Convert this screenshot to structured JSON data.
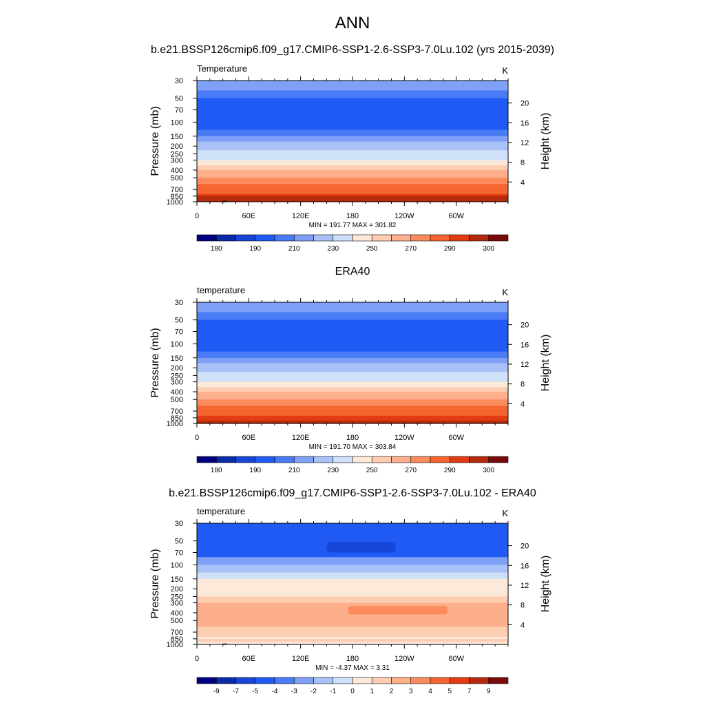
{
  "figure": {
    "title": "ANN",
    "panel_titles": [
      "b.e21.BSSP126cmip6.f09_g17.CMIP6-SSP1-2.6-SSP3-7.0Lu.102 (yrs 2015-2039)",
      "ERA40",
      "b.e21.BSSP126cmip6.f09_g17.CMIP6-SSP1-2.6-SSP3-7.0Lu.102 - ERA40"
    ]
  },
  "colors": {
    "abs_levels": [
      "#000080",
      "#0a2aa8",
      "#1745d6",
      "#1f5af5",
      "#4a7bf6",
      "#7ea0f6",
      "#a9c1f7",
      "#cfe0f9",
      "#fde9da",
      "#fdcdb1",
      "#fdae8a",
      "#fb8b5d",
      "#f5652f",
      "#e23a12",
      "#b52a0c",
      "#780a0a"
    ],
    "diff_levels": [
      "#000080",
      "#0a2aa8",
      "#1745d6",
      "#1f5af5",
      "#4a7bf6",
      "#7ea0f6",
      "#a9c1f7",
      "#cfe0f9",
      "#fde9da",
      "#fdcdb1",
      "#fdae8a",
      "#fb8b5d",
      "#f5652f",
      "#e23a12",
      "#b52a0c",
      "#780a0a"
    ]
  },
  "chart_data": [
    {
      "type": "heatmap",
      "name": "model",
      "subtitle_left": "Temperature",
      "units": "K",
      "ylabel": "Pressure (mb)",
      "ylabel_right": "Height (km)",
      "x_ticks": [
        "0",
        "60E",
        "120E",
        "180",
        "120W",
        "60W"
      ],
      "y_ticks": [
        "30",
        "50",
        "70",
        "100",
        "150",
        "200",
        "250",
        "300",
        "400",
        "500",
        "700",
        "850",
        "1000"
      ],
      "y_tick_values": [
        30,
        50,
        70,
        100,
        150,
        200,
        250,
        300,
        400,
        500,
        700,
        850,
        1000
      ],
      "height_ticks": [
        "4",
        "8",
        "12",
        "16",
        "20"
      ],
      "height_tick_values": [
        4,
        8,
        12,
        16,
        20
      ],
      "ylim": [
        1000,
        30
      ],
      "xlim": [
        0,
        360
      ],
      "stats": "MIN = 191.77  MAX = 301.82",
      "colorbar_labels": [
        "180",
        "190",
        "210",
        "230",
        "250",
        "270",
        "290",
        "300"
      ],
      "profile_pressure": [
        30,
        40,
        50,
        60,
        70,
        85,
        100,
        125,
        150,
        175,
        200,
        225,
        250,
        300,
        350,
        400,
        500,
        600,
        700,
        800,
        850,
        925,
        1000
      ],
      "profile_level": [
        5,
        4,
        3,
        3,
        3,
        3,
        3,
        4,
        5,
        6,
        6,
        7,
        7,
        8,
        9,
        10,
        11,
        12,
        12,
        13,
        14,
        14,
        15
      ],
      "topography_lon": [
        [
          10,
          30
        ],
        [
          30,
          35
        ],
        [
          35,
          45
        ],
        [
          102,
          105
        ],
        [
          114,
          116
        ],
        [
          235,
          255
        ]
      ],
      "topography_top_mb": [
        990,
        975,
        990,
        990,
        990,
        990
      ]
    },
    {
      "type": "heatmap",
      "name": "obs",
      "subtitle_left": "temperature",
      "units": "K",
      "ylabel": "Pressure (mb)",
      "ylabel_right": "Height (km)",
      "x_ticks": [
        "0",
        "60E",
        "120E",
        "180",
        "120W",
        "60W"
      ],
      "y_ticks": [
        "30",
        "50",
        "70",
        "100",
        "150",
        "200",
        "250",
        "300",
        "400",
        "500",
        "700",
        "850",
        "1000"
      ],
      "y_tick_values": [
        30,
        50,
        70,
        100,
        150,
        200,
        250,
        300,
        400,
        500,
        700,
        850,
        1000
      ],
      "height_ticks": [
        "4",
        "8",
        "12",
        "16",
        "20"
      ],
      "height_tick_values": [
        4,
        8,
        12,
        16,
        20
      ],
      "ylim": [
        1000,
        30
      ],
      "xlim": [
        0,
        360
      ],
      "stats": "MIN = 191.70  MAX = 303.84",
      "colorbar_labels": [
        "180",
        "190",
        "210",
        "230",
        "250",
        "270",
        "290",
        "300"
      ],
      "profile_pressure": [
        30,
        40,
        50,
        60,
        70,
        85,
        100,
        125,
        150,
        175,
        200,
        225,
        250,
        300,
        350,
        400,
        500,
        600,
        700,
        800,
        850,
        925,
        1000
      ],
      "profile_level": [
        5,
        4,
        3,
        3,
        3,
        3,
        3,
        4,
        5,
        6,
        6,
        7,
        7,
        8,
        9,
        10,
        11,
        12,
        12,
        13,
        13,
        14,
        15
      ],
      "topography_lon": [],
      "topography_top_mb": []
    },
    {
      "type": "heatmap",
      "name": "diff",
      "subtitle_left": "temperature",
      "units": "K",
      "ylabel": "Pressure (mb)",
      "ylabel_right": "Height (km)",
      "x_ticks": [
        "0",
        "60E",
        "120E",
        "180",
        "120W",
        "60W"
      ],
      "y_ticks": [
        "30",
        "50",
        "70",
        "100",
        "150",
        "200",
        "250",
        "300",
        "400",
        "500",
        "700",
        "850",
        "1000"
      ],
      "y_tick_values": [
        30,
        50,
        70,
        100,
        150,
        200,
        250,
        300,
        400,
        500,
        700,
        850,
        1000
      ],
      "height_ticks": [
        "4",
        "8",
        "12",
        "16",
        "20"
      ],
      "height_tick_values": [
        4,
        8,
        12,
        16,
        20
      ],
      "ylim": [
        1000,
        30
      ],
      "xlim": [
        0,
        360
      ],
      "stats": "MIN =  -4.37  MAX =   3.31",
      "colorbar_labels": [
        "-9",
        "-7",
        "-5",
        "-4",
        "-3",
        "-2",
        "-1",
        "0",
        "1",
        "2",
        "3",
        "4",
        "5",
        "7",
        "9"
      ],
      "profile_pressure": [
        30,
        50,
        65,
        80,
        100,
        125,
        150,
        250,
        300,
        350,
        400,
        500,
        600,
        700,
        800,
        850,
        925,
        1000
      ],
      "profile_level": [
        3,
        3,
        3,
        5,
        6,
        7,
        8,
        9,
        10,
        10,
        10,
        10,
        9,
        9,
        8,
        9,
        8,
        8
      ],
      "anomaly_lon": [
        [
          150,
          230
        ]
      ],
      "anomaly_top_mb": [
        52
      ],
      "anomaly_bottom_mb": [
        70
      ],
      "anomaly_level": [
        2
      ],
      "warm_lon": [
        [
          175,
          290
        ]
      ],
      "warm_top_mb": [
        330
      ],
      "warm_bottom_mb": [
        420
      ],
      "warm_level": [
        11
      ],
      "topography_lon": [
        [
          10,
          30
        ],
        [
          30,
          35
        ],
        [
          35,
          45
        ],
        [
          102,
          105
        ],
        [
          114,
          116
        ],
        [
          235,
          255
        ]
      ],
      "topography_top_mb": [
        990,
        975,
        990,
        990,
        990,
        990
      ]
    }
  ]
}
